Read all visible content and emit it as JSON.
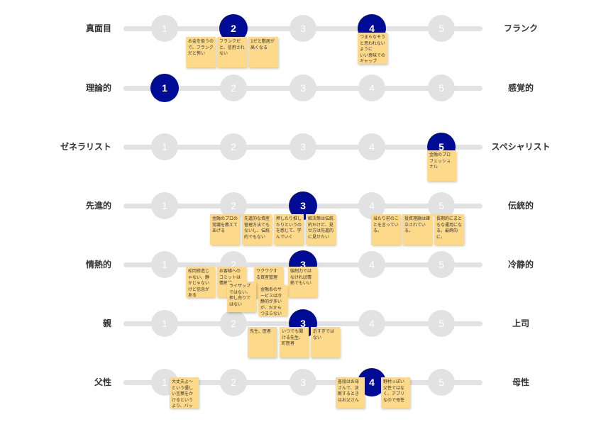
{
  "scale_numbers": [
    "1",
    "2",
    "3",
    "4",
    "5"
  ],
  "rows": [
    {
      "left": "真面目",
      "right": "フランク",
      "selected": [
        2,
        4
      ],
      "notes": [
        {
          "text": "お金を扱うので、フランクだと怖い"
        },
        {
          "text": "フランクだと、信用されない"
        },
        {
          "text": "1だと敷居が高くなる"
        },
        {
          "text": "つまらなそうと思われないように\nいい意味でのギャップ"
        }
      ]
    },
    {
      "left": "理論的",
      "right": "感覚的",
      "selected": [
        1
      ],
      "notes": []
    },
    {
      "left": "ゼネラリスト",
      "right": "スペシャリスト",
      "selected": [
        5
      ],
      "notes": [
        {
          "text": "金融のプロフェッショナル"
        }
      ]
    },
    {
      "left": "先進的",
      "right": "伝統的",
      "selected": [
        3
      ],
      "notes": [
        {
          "text": "金融のプロの常識を教えてあげる"
        },
        {
          "text": "先進的な資産管理方法でもないし、伝統的でもない"
        },
        {
          "text": "押したり推したりというのを感じて、学んでいく"
        },
        {
          "text": "解決策は伝統的だけど、見せ方は先進的に見せたい"
        },
        {
          "text": "当たり前のことを言っている。"
        },
        {
          "text": "投資理論は確立されている。"
        },
        {
          "text": "長期的にまともな運用になる。最終的に。"
        }
      ]
    },
    {
      "left": "情熱的",
      "right": "冷静的",
      "selected": [
        3
      ],
      "notes": [
        {
          "text": "松岡修造じゃない、静かじゃないけど信念がある"
        },
        {
          "text": "お客様へのコミットは情熱的"
        },
        {
          "text": "ワクワクする資産管理"
        },
        {
          "text": "強制力ではなければ情熱でもいい"
        },
        {
          "text": "ライザップではない、押し売りではない"
        },
        {
          "text": "金融系のサービスは冷静的が多いが、だからつまらない"
        }
      ]
    },
    {
      "left": "親",
      "right": "上司",
      "selected": [
        3
      ],
      "notes": [
        {
          "text": "先生、医者"
        },
        {
          "text": "いつでも聞ける先生、町医者"
        },
        {
          "text": "近すぎではない"
        }
      ]
    },
    {
      "left": "父性",
      "right": "母性",
      "selected": [
        4
      ],
      "notes": [
        {
          "text": "大丈夫よ〜という優しい言葉をかけるというより、バッサリいく"
        },
        {
          "text": "普段はお母さんで、決断するときはお父さん"
        },
        {
          "text": "野村っぽい父性ではなく、アプリなので母性"
        }
      ]
    }
  ],
  "colors": {
    "selected": "#010c96",
    "unselected": "#e2e2e2",
    "note": "#fdd98a",
    "label": "#333333"
  }
}
